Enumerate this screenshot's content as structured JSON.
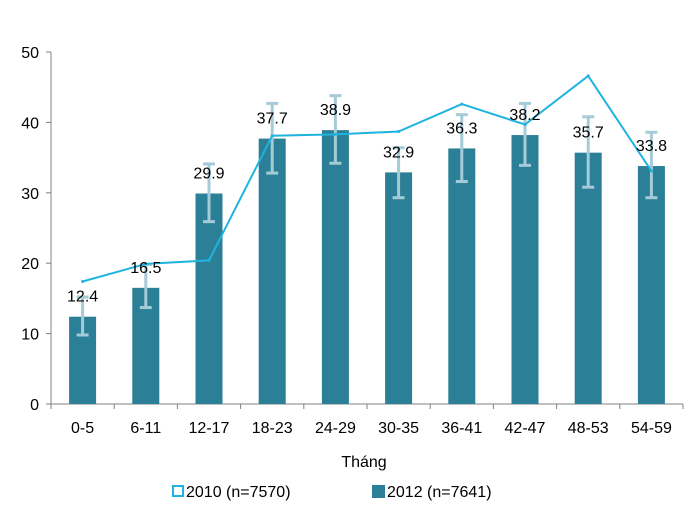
{
  "chart_data": {
    "type": "bar",
    "categories": [
      "0-5",
      "6-11",
      "12-17",
      "18-23",
      "24-29",
      "30-35",
      "36-41",
      "42-47",
      "48-53",
      "54-59"
    ],
    "xlabel": "Tháng",
    "ylabel": "",
    "ylim": [
      0,
      50
    ],
    "yticks": [
      0,
      10,
      20,
      30,
      40,
      50
    ],
    "grid": false,
    "legend_position": "bottom",
    "series": [
      {
        "name": "2010 (n=7570)",
        "type": "line",
        "color": "#1fb4e0",
        "values": [
          17.4,
          19.9,
          20.4,
          38.1,
          38.3,
          38.7,
          42.6,
          39.7,
          46.6,
          33.1
        ]
      },
      {
        "name": "2012 (n=7641)",
        "type": "bar",
        "color": "#2b7f96",
        "values": [
          12.4,
          16.5,
          29.9,
          37.7,
          38.9,
          32.9,
          36.3,
          38.2,
          35.7,
          33.8
        ],
        "value_labels": [
          "12.4",
          "16.5",
          "29.9",
          "37.7",
          "38.9",
          "32.9",
          "36.3",
          "38.2",
          "35.7",
          "33.8"
        ],
        "error_low": [
          9.8,
          13.7,
          25.9,
          32.8,
          34.2,
          29.3,
          31.6,
          33.9,
          30.8,
          29.3
        ],
        "error_high": [
          15.2,
          19.8,
          34.1,
          42.7,
          43.8,
          36.4,
          41.1,
          42.7,
          40.8,
          38.6
        ]
      }
    ],
    "error_bar_color": "#a6cbd8"
  }
}
